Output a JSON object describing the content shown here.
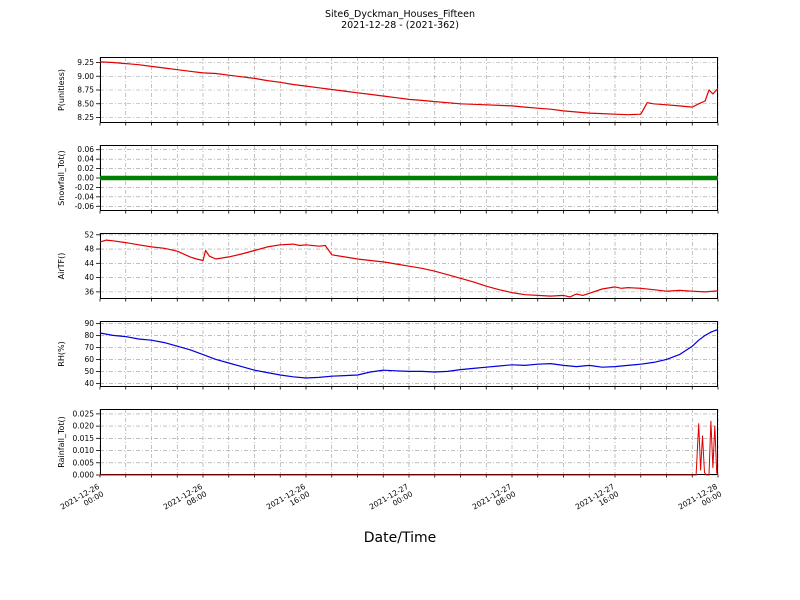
{
  "figure": {
    "title": "Site6_Dyckman_Houses_Fifteen",
    "subtitle": "2021-12-28 - (2021-362)",
    "xlabel": "Date/Time",
    "background": "#ffffff",
    "grid_color": "#999999",
    "axis_color": "#000000",
    "xrange": [
      0,
      48
    ],
    "minor_grid_step_hours": 2,
    "xticks": [
      {
        "hour": 0,
        "lines": [
          "2021-12-26",
          "00:00"
        ]
      },
      {
        "hour": 8,
        "lines": [
          "2021-12-26",
          "08:00"
        ]
      },
      {
        "hour": 16,
        "lines": [
          "2021-12-26",
          "16:00"
        ]
      },
      {
        "hour": 24,
        "lines": [
          "2021-12-27",
          "00:00"
        ]
      },
      {
        "hour": 32,
        "lines": [
          "2021-12-27",
          "08:00"
        ]
      },
      {
        "hour": 40,
        "lines": [
          "2021-12-27",
          "16:00"
        ]
      },
      {
        "hour": 48,
        "lines": [
          "2021-12-28",
          "00:00"
        ]
      }
    ]
  },
  "chart_data": [
    {
      "name": "P",
      "type": "line",
      "ylabel": "P(unitless)",
      "color": "#e00000",
      "linewidth": 1.2,
      "ylim": [
        8.15,
        9.35
      ],
      "yticks": [
        "8.25",
        "8.50",
        "8.75",
        "9.00",
        "9.25"
      ],
      "x": [
        0,
        1,
        2,
        3,
        4,
        5,
        6,
        7,
        8,
        9,
        10,
        11,
        12,
        13,
        14,
        15,
        16,
        17,
        18,
        19,
        20,
        21,
        22,
        23,
        24,
        25,
        26,
        27,
        28,
        29,
        30,
        31,
        32,
        33,
        34,
        35,
        36,
        37,
        38,
        39,
        40,
        41,
        42,
        42.5,
        43,
        44,
        45,
        45.5,
        46,
        46.5,
        47,
        47.3,
        47.6,
        48
      ],
      "y": [
        9.26,
        9.25,
        9.23,
        9.21,
        9.18,
        9.15,
        9.12,
        9.09,
        9.06,
        9.05,
        9.02,
        8.99,
        8.96,
        8.92,
        8.89,
        8.85,
        8.82,
        8.79,
        8.76,
        8.73,
        8.7,
        8.67,
        8.64,
        8.61,
        8.58,
        8.56,
        8.54,
        8.52,
        8.5,
        8.49,
        8.48,
        8.47,
        8.46,
        8.44,
        8.42,
        8.4,
        8.37,
        8.35,
        8.33,
        8.32,
        8.31,
        8.3,
        8.31,
        8.52,
        8.5,
        8.48,
        8.46,
        8.45,
        8.44,
        8.5,
        8.55,
        8.75,
        8.68,
        8.78
      ]
    },
    {
      "name": "Snowfall",
      "type": "line",
      "ylabel": "Snowfall_Tot()",
      "color": "#008000",
      "linewidth": 4.5,
      "ylim": [
        -0.07,
        0.07
      ],
      "yticks": [
        "-0.06",
        "-0.04",
        "-0.02",
        "0.00",
        "0.02",
        "0.04",
        "0.06"
      ],
      "x": [
        0,
        48
      ],
      "y": [
        0,
        0
      ]
    },
    {
      "name": "AirTF",
      "type": "line",
      "ylabel": "AirTF()",
      "color": "#e00000",
      "linewidth": 1.2,
      "ylim": [
        34,
        52.5
      ],
      "yticks": [
        "36",
        "40",
        "44",
        "48",
        "52"
      ],
      "x": [
        0,
        0.5,
        1,
        2,
        3,
        4,
        5,
        6,
        7,
        7.5,
        8,
        8.2,
        8.5,
        9,
        10,
        11,
        12,
        13,
        14,
        15,
        15.5,
        16,
        17,
        17.5,
        18,
        19,
        20,
        21,
        22,
        23,
        24,
        25,
        26,
        27,
        28,
        29,
        30,
        31,
        32,
        33,
        34,
        35,
        36,
        36.5,
        37,
        37.5,
        38,
        39,
        40,
        40.5,
        41,
        42,
        43,
        44,
        45,
        46,
        47,
        48
      ],
      "y": [
        50,
        50.5,
        50.3,
        49.8,
        49.2,
        48.6,
        48.2,
        47.4,
        45.8,
        45.2,
        44.8,
        47.6,
        46.0,
        45.2,
        45.8,
        46.6,
        47.6,
        48.6,
        49.2,
        49.4,
        49.0,
        49.2,
        48.8,
        49.0,
        46.4,
        45.8,
        45.2,
        44.8,
        44.4,
        43.8,
        43.2,
        42.6,
        41.8,
        40.8,
        39.8,
        38.8,
        37.6,
        36.6,
        35.8,
        35.2,
        35.0,
        34.8,
        35.0,
        34.6,
        35.4,
        35.0,
        35.6,
        36.8,
        37.4,
        37.0,
        37.2,
        37.0,
        36.6,
        36.2,
        36.4,
        36.2,
        36.0,
        36.3
      ]
    },
    {
      "name": "RH",
      "type": "line",
      "ylabel": "RH(%)",
      "color": "#0000dd",
      "linewidth": 1.2,
      "ylim": [
        37,
        92
      ],
      "yticks": [
        "40",
        "50",
        "60",
        "70",
        "80",
        "90"
      ],
      "x": [
        0,
        1,
        2,
        3,
        4,
        5,
        6,
        7,
        8,
        9,
        10,
        11,
        12,
        13,
        14,
        15,
        16,
        17,
        18,
        19,
        20,
        21,
        22,
        23,
        24,
        25,
        26,
        27,
        28,
        29,
        30,
        31,
        32,
        33,
        34,
        35,
        36,
        37,
        38,
        39,
        40,
        41,
        42,
        43,
        44,
        45,
        46,
        46.5,
        47,
        47.5,
        48
      ],
      "y": [
        82,
        80,
        79,
        77,
        76,
        74,
        71,
        68,
        64,
        60,
        57,
        54,
        51,
        49,
        47,
        45.5,
        44.5,
        45,
        46,
        46.5,
        47,
        49.5,
        51,
        50.5,
        50,
        50,
        49.5,
        50,
        51.5,
        52.5,
        53.5,
        54.5,
        55.5,
        55,
        56,
        56.5,
        55,
        54,
        55,
        53.5,
        54,
        55,
        56,
        57.5,
        60,
        64,
        71,
        76,
        80,
        83,
        85
      ]
    },
    {
      "name": "Rainfall",
      "type": "line",
      "ylabel": "Rainfall_Tot()",
      "color": "#e00000",
      "linewidth": 1.0,
      "ylim": [
        0,
        0.027
      ],
      "yticks": [
        "0.000",
        "0.005",
        "0.010",
        "0.015",
        "0.020",
        "0.025"
      ],
      "x": [
        0,
        45,
        46.3,
        46.5,
        46.65,
        46.8,
        46.95,
        47.1,
        47.3,
        47.45,
        47.6,
        47.75,
        47.9,
        48
      ],
      "y": [
        0,
        0,
        0,
        0.021,
        0.002,
        0.016,
        0.001,
        0,
        0,
        0.022,
        0.003,
        0.02,
        0.001,
        0
      ]
    }
  ]
}
